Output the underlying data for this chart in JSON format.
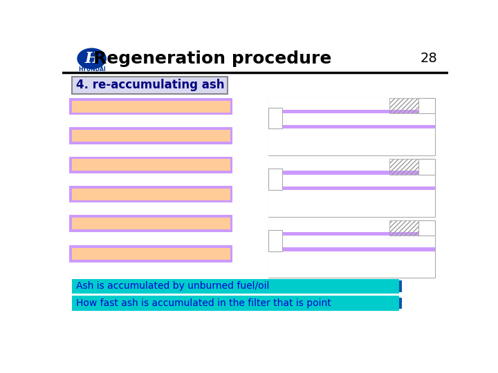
{
  "title": "Regeneration procedure",
  "page_num": "28",
  "section_label": "4. re-accumulating ash",
  "label_bg": "#d8d8f0",
  "label_border": "#888888",
  "label_text_color": "#000080",
  "label_fontsize": 12,
  "bar_fill": "#ffcc99",
  "bar_border": "#cc99ff",
  "note1": "Ash is accumulated by unburned fuel/oil",
  "note2": "How fast ash is accumulated in the filter that is point",
  "note_bg": "#00cccc",
  "note_text_color": "#0000cc",
  "note_fontsize": 10,
  "hyundai_blue": "#003399",
  "page_bg": "#ffffff"
}
